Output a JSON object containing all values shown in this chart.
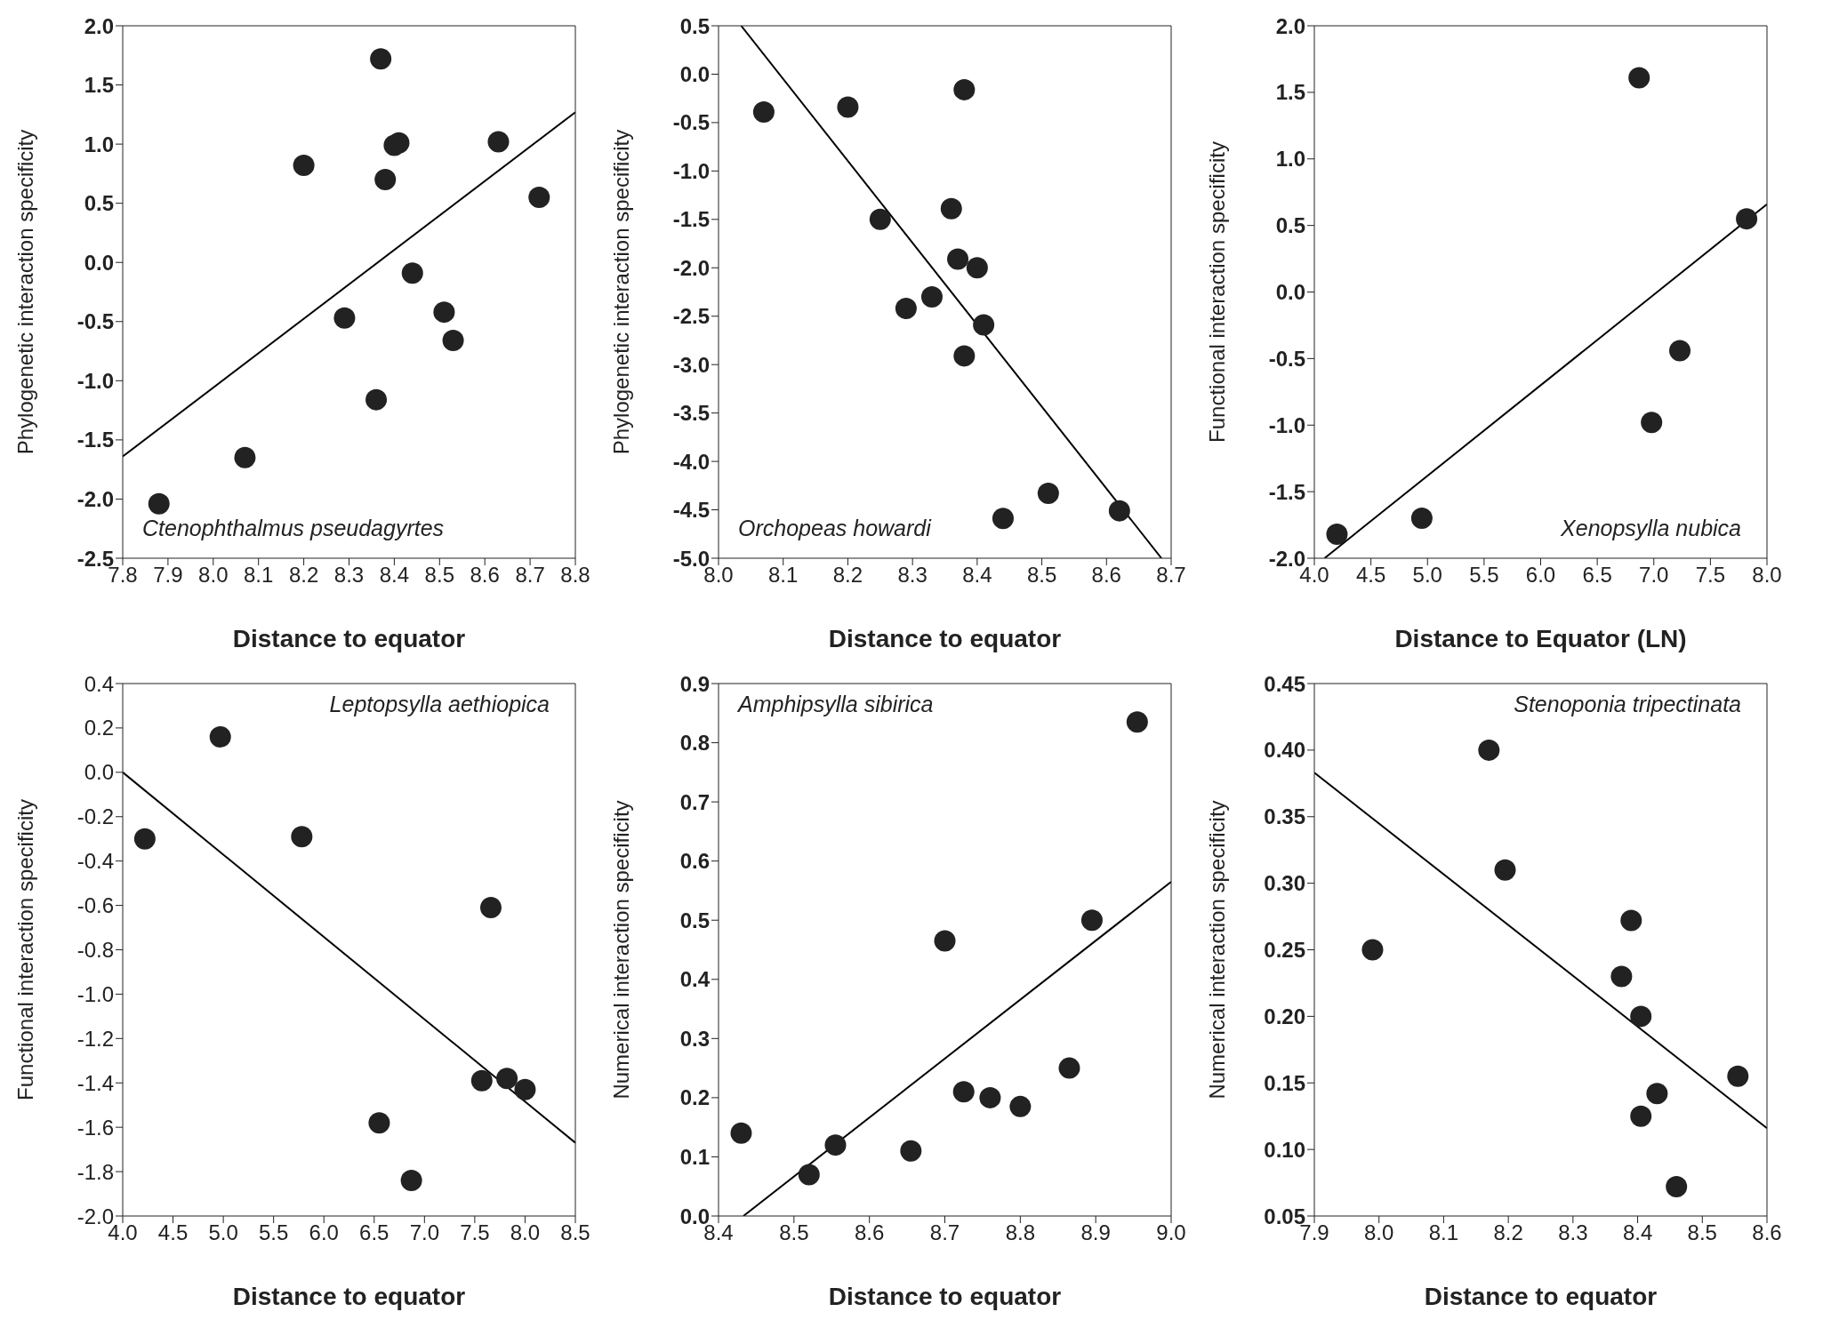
{
  "chart_data": [
    {
      "type": "scatter",
      "xlabel": "Distance to equator",
      "ylabel": "Phylogenetic interaction specificity",
      "annotations": [
        "Ctenophthalmus pseudagyrtes"
      ],
      "marker": "circle",
      "xlim": [
        7.8,
        8.8
      ],
      "ylim": [
        -2.5,
        2.0
      ],
      "xticks": [
        7.8,
        7.9,
        {
          "value": 8,
          "label": "8.0"
        },
        8.1,
        8.2,
        8.3,
        8.4,
        8.5,
        8.6,
        8.7,
        8.8
      ],
      "yticks": [
        {
          "value": -2.5,
          "label": "-2.5"
        },
        {
          "value": -2,
          "label": "-2.0"
        },
        {
          "value": -1.5,
          "label": "-1.5"
        },
        {
          "value": -1,
          "label": "-1.0"
        },
        {
          "value": -0.5,
          "label": "-0.5"
        },
        {
          "value": 0,
          "label": "0.0"
        },
        {
          "value": 0.5,
          "label": "0.5"
        },
        {
          "value": 1,
          "label": "1.0"
        },
        {
          "value": 1.5,
          "label": "1.5"
        },
        {
          "value": 2,
          "label": "2.0"
        }
      ],
      "series": [
        {
          "type": "scatter",
          "color": "#222222",
          "x": [
            7.88,
            8.07,
            8.2,
            8.29,
            8.36,
            8.37,
            8.38,
            8.4,
            8.41,
            8.44,
            8.51,
            8.53,
            8.63,
            8.72
          ],
          "values": [
            -2.04,
            -1.65,
            0.82,
            -0.47,
            -1.16,
            1.72,
            0.7,
            0.99,
            1.01,
            -0.09,
            -0.42,
            -0.66,
            1.02,
            0.55
          ]
        },
        {
          "type": "line",
          "marker": "none",
          "color": "#000000",
          "x": [
            7.8,
            8.8
          ],
          "values": [
            -1.64,
            1.27
          ]
        }
      ]
    },
    {
      "type": "scatter",
      "xlabel": "Distance to equator",
      "ylabel": "Phylogenetic interaction specificity",
      "annotations": [
        "Orchopeas howardi"
      ],
      "marker": "circle",
      "xlim": [
        8.0,
        8.7
      ],
      "ylim": [
        -5.0,
        0.5
      ],
      "xticks": [
        {
          "value": 8,
          "label": "8.0"
        },
        8.1,
        8.2,
        8.3,
        8.4,
        8.5,
        8.6,
        8.7
      ],
      "yticks": [
        {
          "value": -5,
          "label": "-5.0"
        },
        {
          "value": -4.5,
          "label": "-4.5"
        },
        {
          "value": -4,
          "label": "-4.0"
        },
        {
          "value": -3.5,
          "label": "-3.5"
        },
        {
          "value": -3,
          "label": "-3.0"
        },
        {
          "value": -2.5,
          "label": "-2.5"
        },
        {
          "value": -2,
          "label": "-2.0"
        },
        {
          "value": -1.5,
          "label": "-1.5"
        },
        {
          "value": -1,
          "label": "-1.0"
        },
        {
          "value": -0.5,
          "label": "-0.5"
        },
        {
          "value": 0,
          "label": "0.0"
        },
        {
          "value": 0.5,
          "label": "0.5"
        }
      ],
      "series": [
        {
          "type": "scatter",
          "color": "#222222",
          "x": [
            8.07,
            8.2,
            8.25,
            8.29,
            8.33,
            8.36,
            8.37,
            8.38,
            8.4,
            8.41,
            8.38,
            8.44,
            8.51,
            8.62
          ],
          "values": [
            -0.39,
            -0.34,
            -1.5,
            -2.42,
            -2.3,
            -1.39,
            -1.91,
            -0.16,
            -2.0,
            -2.59,
            -2.91,
            -4.59,
            -4.33,
            -4.51
          ]
        },
        {
          "type": "line",
          "marker": "none",
          "color": "#000000",
          "x": [
            8.035,
            8.685
          ],
          "values": [
            0.5,
            -5.0
          ]
        }
      ]
    },
    {
      "type": "scatter",
      "xlabel": "Distance to Equator (LN)",
      "ylabel": "Functional interaction specificity",
      "annotations": [
        "Xenopsylla nubica"
      ],
      "marker": "circle",
      "xlim": [
        4.0,
        8.0
      ],
      "ylim": [
        -2.0,
        2.0
      ],
      "xticks": [
        {
          "value": 4,
          "label": "4.0"
        },
        4.5,
        {
          "value": 5,
          "label": "5.0"
        },
        5.5,
        {
          "value": 6,
          "label": "6.0"
        },
        6.5,
        {
          "value": 7,
          "label": "7.0"
        },
        7.5,
        {
          "value": 8,
          "label": "8.0"
        }
      ],
      "yticks": [
        {
          "value": -2,
          "label": "-2.0"
        },
        {
          "value": -1.5,
          "label": "-1.5"
        },
        {
          "value": -1,
          "label": "-1.0"
        },
        {
          "value": -0.5,
          "label": "-0.5"
        },
        {
          "value": 0,
          "label": "0.0"
        },
        {
          "value": 0.5,
          "label": "0.5"
        },
        {
          "value": 1,
          "label": "1.0"
        },
        {
          "value": 1.5,
          "label": "1.5"
        },
        {
          "value": 2,
          "label": "2.0"
        }
      ],
      "series": [
        {
          "type": "scatter",
          "color": "#222222",
          "x": [
            4.2,
            4.95,
            6.87,
            6.98,
            7.23,
            7.82
          ],
          "values": [
            -1.82,
            -1.7,
            1.61,
            -0.98,
            -0.44,
            0.55
          ]
        },
        {
          "type": "line",
          "marker": "none",
          "color": "#000000",
          "x": [
            4.09,
            8.0
          ],
          "values": [
            -2.0,
            0.66
          ]
        }
      ]
    },
    {
      "type": "scatter",
      "xlabel": "Distance to equator",
      "ylabel": "Functional interaction specificity",
      "annotations": [
        "Leptopsylla aethiopica"
      ],
      "marker": "circle",
      "xlim": [
        4.0,
        8.5
      ],
      "ylim": [
        -2.0,
        0.4
      ],
      "xticks": [
        {
          "value": 4,
          "label": "4.0"
        },
        4.5,
        {
          "value": 5,
          "label": "5.0"
        },
        5.5,
        {
          "value": 6,
          "label": "6.0"
        },
        6.5,
        {
          "value": 7,
          "label": "7.0"
        },
        7.5,
        {
          "value": 8,
          "label": "8.0"
        },
        8.5
      ],
      "yticks": [
        {
          "value": -2,
          "label": "-2.0"
        },
        -1.8,
        -1.6,
        -1.4,
        -1.2,
        {
          "value": -1,
          "label": "-1.0"
        },
        -0.8,
        -0.6,
        -0.4,
        -0.2,
        {
          "value": 0,
          "label": "0.0"
        },
        0.2,
        0.4
      ],
      "series": [
        {
          "type": "scatter",
          "color": "#222222",
          "x": [
            4.22,
            4.97,
            5.78,
            6.55,
            6.87,
            7.57,
            7.66,
            7.82,
            8.0
          ],
          "values": [
            -0.3,
            0.16,
            -0.29,
            -1.58,
            -1.84,
            -1.39,
            -0.61,
            -1.38,
            -1.43
          ]
        },
        {
          "type": "line",
          "marker": "none",
          "color": "#000000",
          "x": [
            4.0,
            8.5
          ],
          "values": [
            0.0,
            -1.67
          ]
        }
      ]
    },
    {
      "type": "scatter",
      "xlabel": "Distance to equator",
      "ylabel": "Numerical interaction specificity",
      "annotations": [
        "Amphipsylla sibirica"
      ],
      "marker": "circle",
      "xlim": [
        8.4,
        9.0
      ],
      "ylim": [
        0.0,
        0.9
      ],
      "xticks": [
        8.4,
        8.5,
        8.6,
        8.7,
        8.8,
        8.9,
        {
          "value": 9,
          "label": "9.0"
        }
      ],
      "yticks": [
        {
          "value": 0,
          "label": "0.0"
        },
        0.1,
        0.2,
        0.3,
        0.4,
        0.5,
        0.6,
        0.7,
        0.8,
        0.9
      ],
      "series": [
        {
          "type": "scatter",
          "color": "#222222",
          "x": [
            8.43,
            8.52,
            8.555,
            8.655,
            8.7,
            8.725,
            8.76,
            8.8,
            8.865,
            8.895,
            8.955
          ],
          "values": [
            0.14,
            0.07,
            0.12,
            0.11,
            0.465,
            0.21,
            0.2,
            0.185,
            0.25,
            0.5,
            0.835
          ]
        },
        {
          "type": "line",
          "marker": "none",
          "color": "#000000",
          "x": [
            8.433,
            9.0
          ],
          "values": [
            0.0,
            0.565
          ]
        }
      ]
    },
    {
      "type": "scatter",
      "xlabel": "Distance to equator",
      "ylabel": "Numerical interaction specificity",
      "annotations": [
        "Stenoponia tripectinata"
      ],
      "marker": "circle",
      "xlim": [
        7.9,
        8.6
      ],
      "ylim": [
        0.05,
        0.45
      ],
      "xticks": [
        7.9,
        {
          "value": 8,
          "label": "8.0"
        },
        8.1,
        8.2,
        8.3,
        8.4,
        8.5,
        8.6
      ],
      "yticks": [
        0.05,
        {
          "value": 0.1,
          "label": "0.10"
        },
        0.15,
        {
          "value": 0.2,
          "label": "0.20"
        },
        0.25,
        {
          "value": 0.3,
          "label": "0.30"
        },
        0.35,
        {
          "value": 0.4,
          "label": "0.40"
        },
        0.45
      ],
      "series": [
        {
          "type": "scatter",
          "color": "#222222",
          "x": [
            7.99,
            8.17,
            8.195,
            8.375,
            8.39,
            8.405,
            8.405,
            8.43,
            8.46,
            8.555
          ],
          "values": [
            0.25,
            0.4,
            0.31,
            0.23,
            0.272,
            0.2,
            0.125,
            0.142,
            0.072,
            0.155
          ]
        },
        {
          "type": "line",
          "marker": "none",
          "color": "#000000",
          "x": [
            7.9,
            8.6
          ],
          "values": [
            0.383,
            0.116
          ]
        }
      ]
    }
  ]
}
